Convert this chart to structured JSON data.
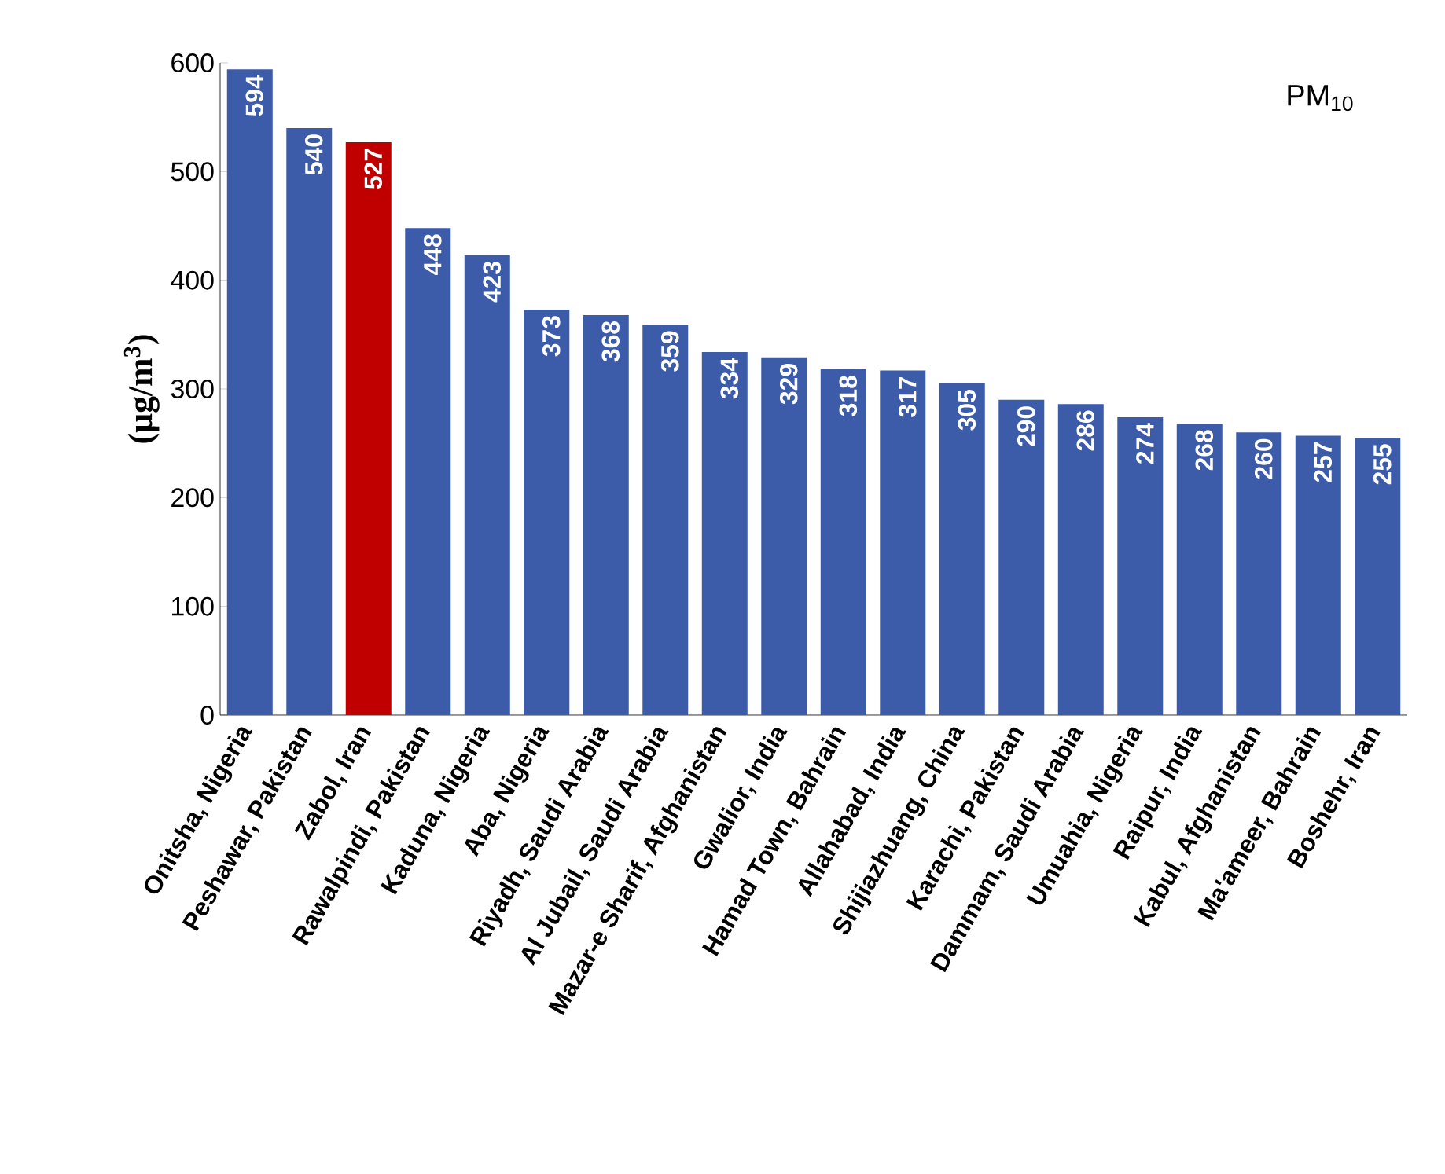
{
  "chart_data": {
    "type": "bar",
    "title": "PM$_{10}$",
    "ylabel": "(μg/m$^{3}$)",
    "categories": [
      "Onitsha, Nigeria",
      "Peshawar, Pakistan",
      "Zabol, Iran",
      "Rawalpindi, Pakistan",
      "Kaduna, Nigeria",
      "Aba, Nigeria",
      "Riyadh, Saudi Arabia",
      "Al Jubail, Saudi Arabia",
      "Mazar-e Sharif, Afghanistan",
      "Gwalior, India",
      "Hamad Town, Bahrain",
      "Allahabad, India",
      "Shijiazhuang, China",
      "Karachi, Pakistan",
      "Dammam, Saudi Arabia",
      "Umuahia, Nigeria",
      "Raipur, India",
      "Kabul, Afghanistan",
      "Ma'ameer, Bahrain",
      "Boshehr, Iran"
    ],
    "values": [
      594,
      540,
      527,
      448,
      423,
      373,
      368,
      359,
      334,
      329,
      318,
      317,
      305,
      290,
      286,
      274,
      268,
      260,
      257,
      255
    ],
    "colors": [
      "#3c5ba8",
      "#3c5ba8",
      "#c00000",
      "#3c5ba8",
      "#3c5ba8",
      "#3c5ba8",
      "#3c5ba8",
      "#3c5ba8",
      "#3c5ba8",
      "#3c5ba8",
      "#3c5ba8",
      "#3c5ba8",
      "#3c5ba8",
      "#3c5ba8",
      "#3c5ba8",
      "#3c5ba8",
      "#3c5ba8",
      "#3c5ba8",
      "#3c5ba8",
      "#3c5ba8"
    ],
    "data_labels": true,
    "ylim": [
      0,
      600
    ],
    "yticks": [
      0,
      100,
      200,
      300,
      400,
      500,
      600
    ],
    "grid": false
  }
}
